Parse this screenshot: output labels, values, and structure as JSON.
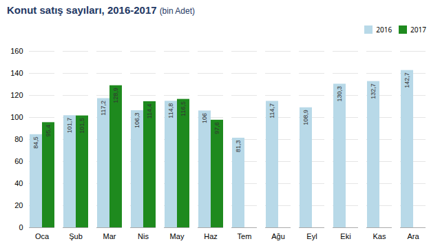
{
  "chart_data": {
    "type": "bar",
    "title": "Konut satış sayıları, 2016-2017",
    "subtitle": "(bin Adet)",
    "categories": [
      "Oca",
      "Şub",
      "Mar",
      "Nis",
      "May",
      "Haz",
      "Tem",
      "Ağu",
      "Eyl",
      "Eki",
      "Kas",
      "Ara"
    ],
    "series": [
      {
        "name": "2016",
        "color": "#b8d9e8",
        "values": [
          84.5,
          101.7,
          117.2,
          106.3,
          114.8,
          106.0,
          81.3,
          114.7,
          108.9,
          130.3,
          132.7,
          142.7
        ],
        "value_labels": [
          "84,5",
          "101,7",
          "117,2",
          "106,3",
          "114,8",
          "106",
          "81,3",
          "114,7",
          "108,9",
          "130,3",
          "132,7",
          "142,7"
        ]
      },
      {
        "name": "2017",
        "color": "#1e8a1e",
        "values": [
          95.4,
          101.5,
          128.9,
          114.4,
          116.5,
          97.6,
          null,
          null,
          null,
          null,
          null,
          null
        ],
        "value_labels": [
          "95,4",
          "101,5",
          "128,9",
          "114,4",
          "116,5",
          "97,6",
          null,
          null,
          null,
          null,
          null,
          null
        ]
      }
    ],
    "ylim": [
      0,
      160
    ],
    "yticks": [
      0,
      20,
      40,
      60,
      80,
      100,
      120,
      140,
      160
    ],
    "grid": true,
    "legend": "upper right",
    "data_labels": true
  }
}
